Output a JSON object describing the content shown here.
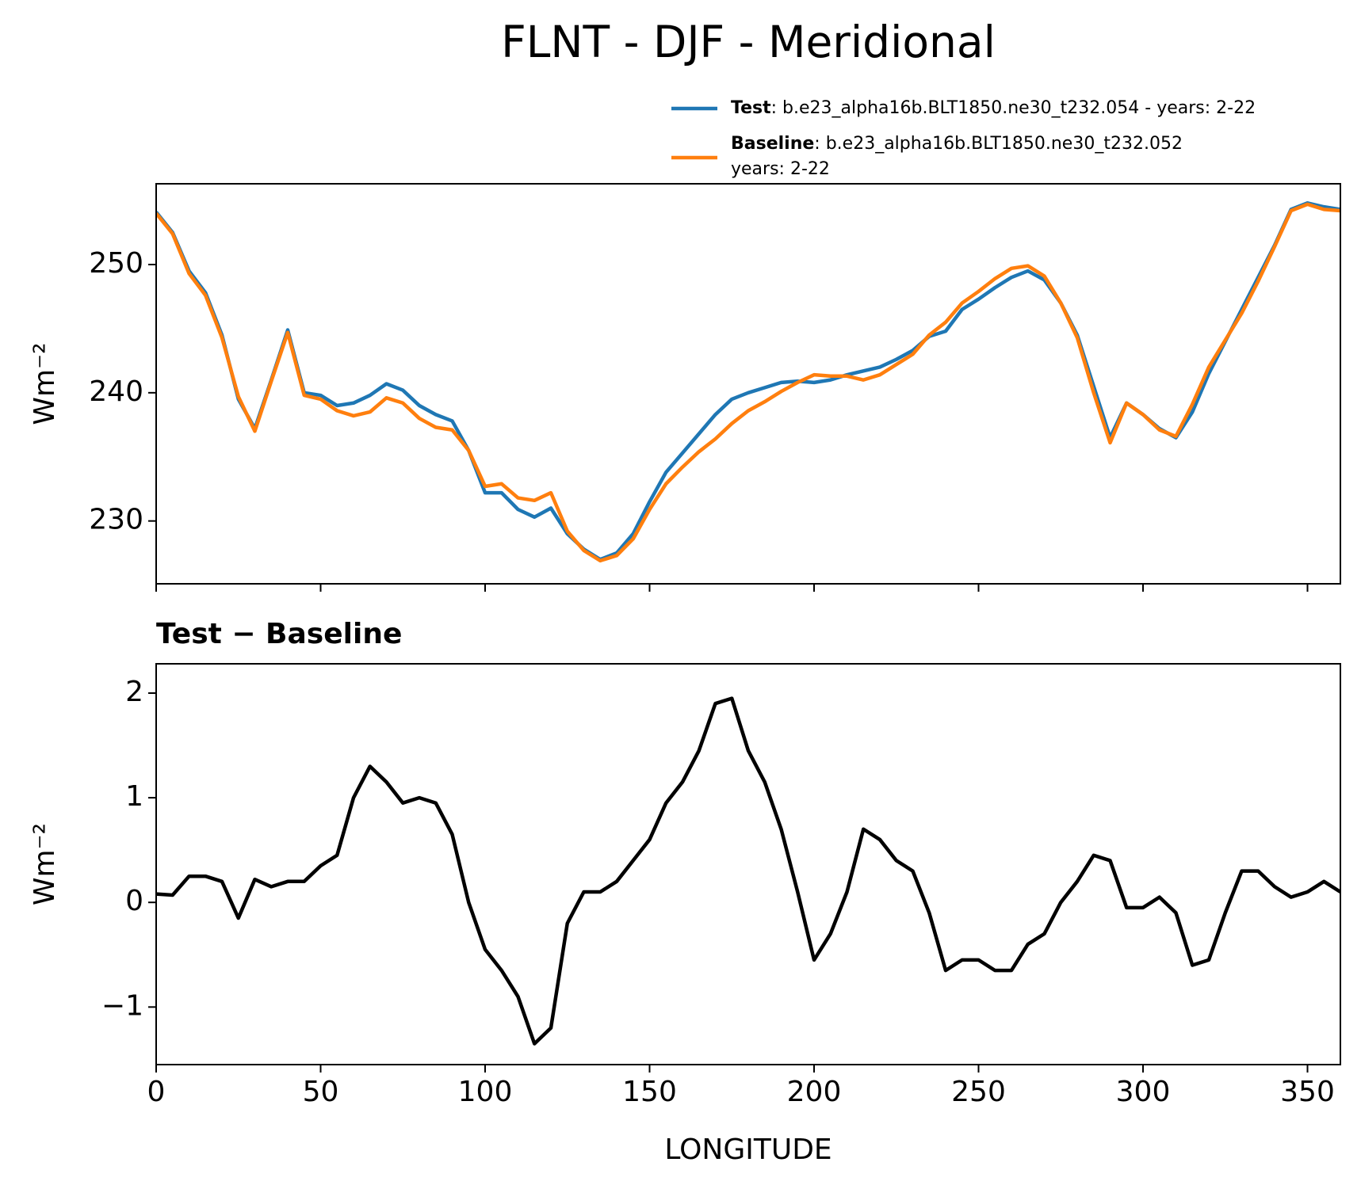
{
  "chart_data": [
    {
      "type": "line",
      "title": "FLNT - DJF - Meridional",
      "ylabel": "Wm⁻²",
      "x": [
        0,
        5,
        10,
        15,
        20,
        25,
        30,
        35,
        40,
        45,
        50,
        55,
        60,
        65,
        70,
        75,
        80,
        85,
        90,
        95,
        100,
        105,
        110,
        115,
        120,
        125,
        130,
        135,
        140,
        145,
        150,
        155,
        160,
        165,
        170,
        175,
        180,
        185,
        190,
        195,
        200,
        205,
        210,
        215,
        220,
        225,
        230,
        235,
        240,
        245,
        250,
        255,
        260,
        265,
        270,
        275,
        280,
        285,
        290,
        295,
        300,
        305,
        310,
        315,
        320,
        325,
        330,
        335,
        340,
        345,
        350,
        355,
        360
      ],
      "series": [
        {
          "name": "Test",
          "description": [
            ": b.e23_alpha16b.BLT1850.ne30_t232.054 - years: 2-22"
          ],
          "color": "#1f77b4",
          "values": [
            254.1,
            252.5,
            249.5,
            247.8,
            244.5,
            239.5,
            237.2,
            241,
            244.9,
            240,
            239.8,
            239.0,
            239.2,
            239.8,
            240.7,
            240.2,
            239,
            238.3,
            237.8,
            235.5,
            232.2,
            232.2,
            230.9,
            230.3,
            231.0,
            229.0,
            227.8,
            227.0,
            227.5,
            229.0,
            231.5,
            233.8,
            235.3,
            236.8,
            238.3,
            239.5,
            240.0,
            240.4,
            240.8,
            240.9,
            240.8,
            241.0,
            241.4,
            241.7,
            242.0,
            242.6,
            243.3,
            244.4,
            244.8,
            246.5,
            247.3,
            248.2,
            249.0,
            249.5,
            248.8,
            247.0,
            244.5,
            240.5,
            236.5,
            239.2,
            238.3,
            237.2,
            236.5,
            238.5,
            241.5,
            244,
            246.5,
            249,
            251.5,
            254.3,
            254.8,
            254.5,
            254.3
          ]
        },
        {
          "name": "Baseline",
          "description": [
            ": b.e23_alpha16b.BLT1850.ne30_t232.052",
            "years: 2-22"
          ],
          "color": "#ff7f0e",
          "values": [
            254.0,
            252.4,
            249.3,
            247.6,
            244.3,
            239.7,
            237.0,
            240.9,
            244.7,
            239.8,
            239.5,
            238.6,
            238.2,
            238.5,
            239.6,
            239.2,
            238.0,
            237.3,
            237.1,
            235.5,
            232.7,
            232.9,
            231.8,
            231.6,
            232.2,
            229.2,
            227.7,
            226.9,
            227.3,
            228.6,
            230.9,
            232.9,
            234.2,
            235.4,
            236.4,
            237.6,
            238.6,
            239.3,
            240.1,
            240.8,
            241.4,
            241.3,
            241.3,
            241.0,
            241.4,
            242.2,
            243.0,
            244.5,
            245.5,
            247.0,
            247.9,
            248.9,
            249.7,
            249.9,
            249.1,
            247.0,
            244.3,
            240.0,
            236.1,
            239.2,
            238.3,
            237.1,
            236.6,
            239.1,
            242.0,
            244.1,
            246.2,
            248.7,
            251.4,
            254.2,
            254.7,
            254.3,
            254.2
          ]
        }
      ],
      "xlim": [
        0,
        360
      ],
      "xticks": [
        0,
        50,
        100,
        150,
        200,
        250,
        300,
        350
      ],
      "xticklabels": false,
      "ylim": [
        225.1,
        256.3
      ],
      "yticks": [
        230,
        240,
        250
      ]
    },
    {
      "type": "line",
      "title": "Test − Baseline",
      "xlabel": "LONGITUDE",
      "ylabel": "Wm⁻²",
      "x": [
        0,
        5,
        10,
        15,
        20,
        25,
        30,
        35,
        40,
        45,
        50,
        55,
        60,
        65,
        70,
        75,
        80,
        85,
        90,
        95,
        100,
        105,
        110,
        115,
        120,
        125,
        130,
        135,
        140,
        145,
        150,
        155,
        160,
        165,
        170,
        175,
        180,
        185,
        190,
        195,
        200,
        205,
        210,
        215,
        220,
        225,
        230,
        235,
        240,
        245,
        250,
        255,
        260,
        265,
        270,
        275,
        280,
        285,
        290,
        295,
        300,
        305,
        310,
        315,
        320,
        325,
        330,
        335,
        340,
        345,
        350,
        355,
        360
      ],
      "series": [
        {
          "color": "#000000",
          "values": [
            0.08,
            0.07,
            0.25,
            0.25,
            0.2,
            -0.15,
            0.22,
            0.15,
            0.2,
            0.2,
            0.35,
            0.45,
            1.0,
            1.3,
            1.15,
            0.95,
            1.0,
            0.95,
            0.65,
            0.0,
            -0.45,
            -0.65,
            -0.9,
            -1.35,
            -1.2,
            -0.2,
            0.1,
            0.1,
            0.2,
            0.4,
            0.6,
            0.95,
            1.15,
            1.45,
            1.9,
            1.95,
            1.45,
            1.15,
            0.7,
            0.1,
            -0.55,
            -0.3,
            0.1,
            0.7,
            0.6,
            0.4,
            0.3,
            -0.1,
            -0.65,
            -0.55,
            -0.55,
            -0.65,
            -0.65,
            -0.4,
            -0.3,
            0.0,
            0.2,
            0.45,
            0.4,
            -0.05,
            -0.05,
            0.05,
            -0.1,
            -0.6,
            -0.55,
            -0.1,
            0.3,
            0.3,
            0.15,
            0.05,
            0.1,
            0.2,
            0.1
          ]
        }
      ],
      "xlim": [
        0,
        360
      ],
      "xticks": [
        0,
        50,
        100,
        150,
        200,
        250,
        300,
        350
      ],
      "xticklabels": true,
      "ylim": [
        -1.55,
        2.28
      ],
      "yticks": [
        {
          "value": -1,
          "label": "−1"
        },
        0,
        1,
        2
      ]
    }
  ]
}
